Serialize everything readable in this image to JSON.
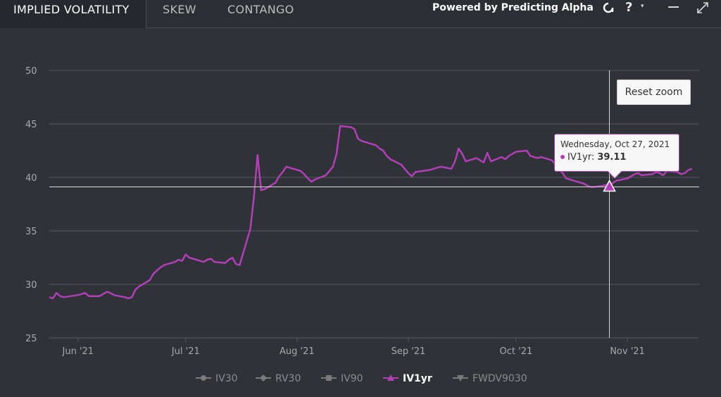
{
  "tabs": [
    {
      "label": "IMPLIED VOLATILITY",
      "active": true
    },
    {
      "label": "SKEW",
      "active": false
    },
    {
      "label": "CONTANGO",
      "active": false
    }
  ],
  "header": {
    "powered_by": "Powered by Predicting Alpha",
    "logo_icon": "predicting-alpha-logo-icon",
    "help_label": "?",
    "help_caret": "▾",
    "minimize_icon": "minimize-icon",
    "expand_icon": "expand-icon"
  },
  "reset_zoom_label": "Reset zoom",
  "tooltip": {
    "date": "Wednesday, Oct 27, 2021",
    "series_label": "IV1yr: ",
    "value": "39.11"
  },
  "colors": {
    "background": "#2f3237",
    "series": "#b23eb8",
    "grid": "#55585d",
    "crosshair": "#d9d9d9"
  },
  "chart_data": {
    "type": "line",
    "ylim": [
      25,
      50
    ],
    "yticks": [
      25,
      30,
      35,
      40,
      45,
      50
    ],
    "xlim": [
      "2021-05-24",
      "2021-11-21"
    ],
    "xticks": [
      {
        "date": "2021-06-01",
        "label": "Jun '21"
      },
      {
        "date": "2021-07-01",
        "label": "Jul '21"
      },
      {
        "date": "2021-08-01",
        "label": "Aug '21"
      },
      {
        "date": "2021-09-01",
        "label": "Sep '21"
      },
      {
        "date": "2021-10-01",
        "label": "Oct '21"
      },
      {
        "date": "2021-11-01",
        "label": "Nov '21"
      }
    ],
    "grid": "horizontal",
    "legend_position": "bottom-center",
    "legend": [
      {
        "name": "IV30",
        "marker": "circle",
        "active": false
      },
      {
        "name": "RV30",
        "marker": "diamond",
        "active": false
      },
      {
        "name": "IV90",
        "marker": "square",
        "active": false
      },
      {
        "name": "IV1yr",
        "marker": "triangle",
        "active": true
      },
      {
        "name": "FWDV9030",
        "marker": "triangle-down",
        "active": false
      }
    ],
    "crosshair": {
      "x": "2021-10-27",
      "y": 39.11
    },
    "series": [
      {
        "name": "IV1yr",
        "x": [
          "2021-05-24",
          "2021-05-25",
          "2021-05-26",
          "2021-05-27",
          "2021-05-28",
          "2021-06-01",
          "2021-06-02",
          "2021-06-03",
          "2021-06-04",
          "2021-06-07",
          "2021-06-08",
          "2021-06-09",
          "2021-06-10",
          "2021-06-11",
          "2021-06-14",
          "2021-06-15",
          "2021-06-16",
          "2021-06-17",
          "2021-06-18",
          "2021-06-21",
          "2021-06-22",
          "2021-06-23",
          "2021-06-24",
          "2021-06-25",
          "2021-06-28",
          "2021-06-29",
          "2021-06-30",
          "2021-07-01",
          "2021-07-02",
          "2021-07-06",
          "2021-07-07",
          "2021-07-08",
          "2021-07-09",
          "2021-07-12",
          "2021-07-13",
          "2021-07-14",
          "2021-07-15",
          "2021-07-16",
          "2021-07-19",
          "2021-07-20",
          "2021-07-21",
          "2021-07-22",
          "2021-07-23",
          "2021-07-26",
          "2021-07-27",
          "2021-07-28",
          "2021-07-29",
          "2021-07-30",
          "2021-08-02",
          "2021-08-03",
          "2021-08-04",
          "2021-08-05",
          "2021-08-06",
          "2021-08-09",
          "2021-08-10",
          "2021-08-11",
          "2021-08-12",
          "2021-08-13",
          "2021-08-16",
          "2021-08-17",
          "2021-08-18",
          "2021-08-19",
          "2021-08-20",
          "2021-08-23",
          "2021-08-24",
          "2021-08-25",
          "2021-08-26",
          "2021-08-27",
          "2021-08-30",
          "2021-08-31",
          "2021-09-01",
          "2021-09-02",
          "2021-09-03",
          "2021-09-07",
          "2021-09-08",
          "2021-09-09",
          "2021-09-10",
          "2021-09-13",
          "2021-09-14",
          "2021-09-15",
          "2021-09-16",
          "2021-09-17",
          "2021-09-20",
          "2021-09-21",
          "2021-09-22",
          "2021-09-23",
          "2021-09-24",
          "2021-09-27",
          "2021-09-28",
          "2021-09-29",
          "2021-09-30",
          "2021-10-01",
          "2021-10-04",
          "2021-10-05",
          "2021-10-06",
          "2021-10-07",
          "2021-10-08",
          "2021-10-11",
          "2021-10-12",
          "2021-10-13",
          "2021-10-14",
          "2021-10-15",
          "2021-10-18",
          "2021-10-19",
          "2021-10-20",
          "2021-10-21",
          "2021-10-22",
          "2021-10-25",
          "2021-10-26",
          "2021-10-27",
          "2021-10-28",
          "2021-10-29",
          "2021-11-01",
          "2021-11-02",
          "2021-11-03",
          "2021-11-04",
          "2021-11-05",
          "2021-11-08",
          "2021-11-09",
          "2021-11-10",
          "2021-11-11",
          "2021-11-12",
          "2021-11-15",
          "2021-11-16",
          "2021-11-17",
          "2021-11-18",
          "2021-11-19"
        ],
        "values": [
          28.8,
          28.7,
          29.2,
          28.9,
          28.8,
          29.0,
          29.1,
          29.2,
          28.9,
          28.9,
          29.1,
          29.3,
          29.2,
          29.0,
          28.8,
          28.7,
          28.8,
          29.5,
          29.8,
          30.4,
          31.0,
          31.3,
          31.6,
          31.8,
          32.1,
          32.3,
          32.2,
          32.8,
          32.5,
          32.1,
          32.3,
          32.4,
          32.1,
          32.0,
          32.3,
          32.5,
          31.9,
          31.8,
          35.2,
          38.2,
          42.1,
          38.8,
          38.9,
          39.5,
          40.1,
          40.5,
          41.0,
          40.9,
          40.6,
          40.3,
          39.9,
          39.6,
          39.8,
          40.2,
          40.6,
          41.0,
          42.2,
          44.8,
          44.7,
          44.5,
          43.6,
          43.4,
          43.3,
          43.0,
          42.7,
          42.5,
          42.0,
          41.7,
          41.2,
          40.8,
          40.4,
          40.1,
          40.5,
          40.7,
          40.8,
          40.9,
          41.0,
          40.8,
          41.5,
          42.7,
          42.2,
          41.5,
          41.8,
          41.6,
          41.4,
          42.3,
          41.5,
          41.9,
          41.7,
          42.0,
          42.2,
          42.4,
          42.5,
          42.0,
          41.9,
          41.8,
          41.9,
          41.6,
          41.2,
          40.8,
          40.4,
          39.9,
          39.6,
          39.5,
          39.4,
          39.2,
          39.1,
          39.2,
          39.3,
          39.11,
          39.5,
          39.7,
          39.9,
          40.1,
          40.3,
          40.4,
          40.2,
          40.3,
          40.5,
          40.4,
          40.2,
          40.6,
          40.5,
          40.3,
          40.4,
          40.7,
          40.8
        ]
      }
    ]
  }
}
